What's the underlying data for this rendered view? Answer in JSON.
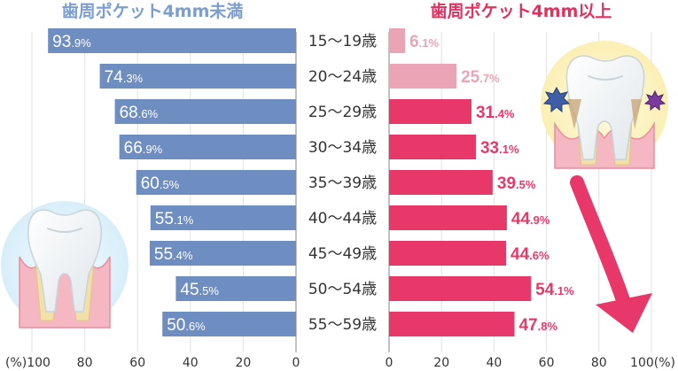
{
  "chart_data": [
    {
      "type": "bar",
      "orientation": "horizontal",
      "title": "歯周ポケット4mm未満",
      "categories": [
        "15～19歳",
        "20～24歳",
        "25～29歳",
        "30～34歳",
        "35～39歳",
        "40～44歳",
        "45～49歳",
        "50～54歳",
        "55～59歳"
      ],
      "values": [
        93.9,
        74.3,
        68.6,
        66.9,
        60.5,
        55.1,
        55.4,
        45.5,
        50.6
      ],
      "xlim": [
        0,
        100
      ],
      "x_direction": "reversed",
      "x_ticks": [
        "(%)100",
        "80",
        "60",
        "40",
        "20",
        "0"
      ],
      "color": "#6e8dc0",
      "title_color": "#7b9ed0"
    },
    {
      "type": "bar",
      "orientation": "horizontal",
      "title": "歯周ポケット4mm以上",
      "categories": [
        "15～19歳",
        "20～24歳",
        "25～29歳",
        "30～34歳",
        "35～39歳",
        "40～44歳",
        "45～49歳",
        "50～54歳",
        "55～59歳"
      ],
      "values": [
        6.1,
        25.7,
        31.4,
        33.1,
        39.5,
        44.9,
        44.6,
        54.1,
        47.8
      ],
      "xlim": [
        0,
        100
      ],
      "x_ticks": [
        "0",
        "20",
        "40",
        "60",
        "80",
        "100(%)"
      ],
      "color": "#e8386a",
      "light_color": "#eba4b5",
      "title_color": "#e3305f"
    }
  ],
  "colors": {
    "grid": "#e2e2e2",
    "accent_arrow": "#e8386a"
  },
  "decorations": [
    "healthy-tooth-illustration",
    "diseased-tooth-illustration",
    "trend-arrow"
  ]
}
